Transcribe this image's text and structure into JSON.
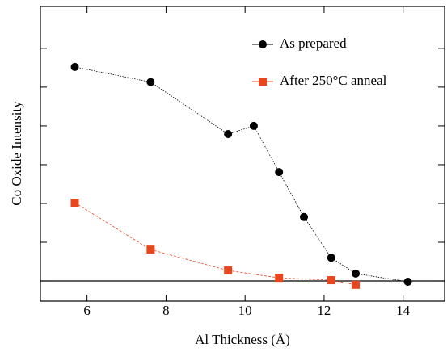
{
  "chart_data": {
    "type": "line",
    "x_label": "Al Thickness (Å)",
    "y_label": "Co Oxide Intensity",
    "xlim": [
      4.82,
      15.05
    ],
    "xticks": [
      6,
      8,
      10,
      12,
      14
    ],
    "ylim": [
      -0.52,
      7.08
    ],
    "yticks": [
      0,
      1,
      2,
      3,
      4,
      5,
      6
    ],
    "hline": 0,
    "legend": "upper right",
    "series": [
      {
        "name": "As prepared",
        "color": "#000000",
        "marker": "circle",
        "x": [
          5.69,
          7.61,
          9.57,
          10.22,
          10.86,
          11.49,
          12.18,
          12.8,
          14.12
        ],
        "values": [
          5.52,
          5.13,
          3.79,
          4.0,
          2.81,
          1.65,
          0.6,
          0.19,
          -0.02
        ]
      },
      {
        "name": "After 250°C anneal",
        "color": "#e8461e",
        "marker": "square",
        "x": [
          5.69,
          7.61,
          9.57,
          10.86,
          12.18,
          12.8
        ],
        "values": [
          2.02,
          0.81,
          0.27,
          0.08,
          0.02,
          -0.1
        ]
      }
    ]
  }
}
